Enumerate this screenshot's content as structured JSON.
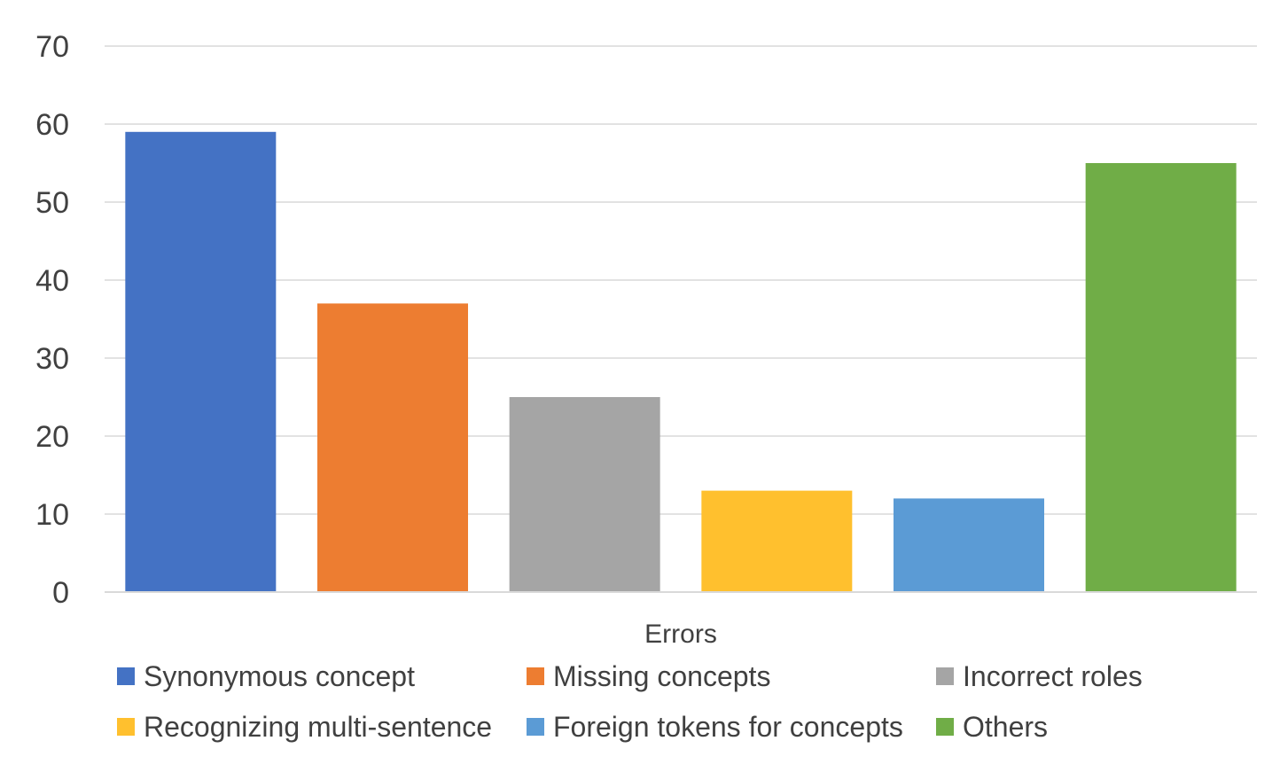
{
  "chart_data": {
    "type": "bar",
    "categories": [
      "Errors"
    ],
    "series": [
      {
        "name": "Synonymous concept",
        "values": [
          59
        ],
        "color": "#4472C4"
      },
      {
        "name": "Missing concepts",
        "values": [
          37
        ],
        "color": "#ED7D31"
      },
      {
        "name": "Incorrect roles",
        "values": [
          25
        ],
        "color": "#A5A5A5"
      },
      {
        "name": "Recognizing multi-sentence",
        "values": [
          13
        ],
        "color": "#FFC02E"
      },
      {
        "name": "Foreign tokens for concepts",
        "values": [
          12
        ],
        "color": "#5B9BD5"
      },
      {
        "name": "Others",
        "values": [
          55
        ],
        "color": "#70AD47"
      }
    ],
    "ylim": [
      0,
      70
    ],
    "yticks": [
      0,
      10,
      20,
      30,
      40,
      50,
      60,
      70
    ],
    "grid": true,
    "legend_position": "bottom"
  }
}
